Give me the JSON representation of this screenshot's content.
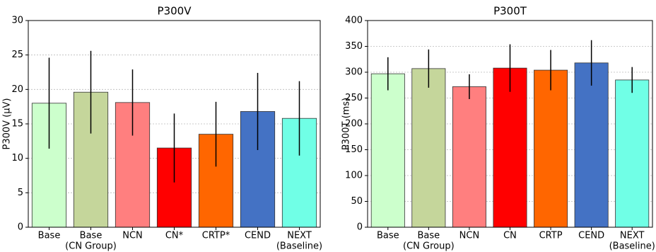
{
  "chart_data": [
    {
      "type": "bar",
      "title": "P300V",
      "ylabel": "P300V (μV)",
      "categories": [
        "Base",
        [
          "Base",
          "(CN Group)"
        ],
        "NCN",
        "CN*",
        "CRTP*",
        "CEND",
        [
          "NEXT",
          "(Baseline)"
        ]
      ],
      "values": [
        18.0,
        19.6,
        18.1,
        11.5,
        13.5,
        16.8,
        15.8
      ],
      "errors": [
        6.6,
        6.0,
        4.8,
        5.0,
        4.7,
        5.6,
        5.4
      ],
      "colors": [
        "#ccffcc",
        "#c5d69b",
        "#ff7f7f",
        "#ff0000",
        "#ff6600",
        "#4472c4",
        "#70ffe6"
      ],
      "ylim": [
        0,
        30
      ],
      "yticks": [
        0,
        5,
        10,
        15,
        20,
        25,
        30
      ],
      "grid": true
    },
    {
      "type": "bar",
      "title": "P300T",
      "ylabel": "P300T (ms)",
      "categories": [
        "Base",
        [
          "Base",
          "(CN Group)"
        ],
        "NCN",
        "CN",
        "CRTP",
        "CEND",
        [
          "NEXT",
          "(Baseline)"
        ]
      ],
      "values": [
        297,
        307,
        272,
        308,
        304,
        318,
        285
      ],
      "errors": [
        32,
        37,
        24,
        46,
        39,
        44,
        25
      ],
      "colors": [
        "#ccffcc",
        "#c5d69b",
        "#ff7f7f",
        "#ff0000",
        "#ff6600",
        "#4472c4",
        "#70ffe6"
      ],
      "ylim": [
        0,
        400
      ],
      "yticks": [
        0,
        50,
        100,
        150,
        200,
        250,
        300,
        350,
        400
      ],
      "grid": true
    }
  ]
}
